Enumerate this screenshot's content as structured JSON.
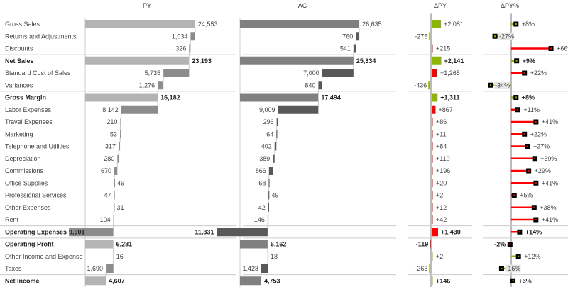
{
  "chart_data": {
    "type": "table",
    "columns": [
      "PY",
      "AC",
      "ΔPY",
      "ΔPY%"
    ],
    "colors": {
      "py_total": "#b4b4b4",
      "py_step": "#8c8c8c",
      "ac_total": "#808080",
      "ac_step": "#595959",
      "positive": "#8db600",
      "negative": "#ff0000",
      "marker": "#000000",
      "gridline": "#cccccc"
    },
    "rows": [
      {
        "label": "Gross Sales",
        "kind": "total",
        "bold": false,
        "py": 24553,
        "ac": 26635,
        "dpy": 2081,
        "dpy_pct": 8
      },
      {
        "label": "Returns and Adjustments",
        "kind": "cost",
        "bold": false,
        "py": 1034,
        "ac": 760,
        "dpy": -275,
        "dpy_pct": -27
      },
      {
        "label": "Discounts",
        "kind": "cost",
        "bold": false,
        "py": 326,
        "ac": 541,
        "dpy": 215,
        "dpy_pct": 66,
        "separator_after": true
      },
      {
        "label": "Net Sales",
        "kind": "total",
        "bold": true,
        "py": 23193,
        "ac": 25334,
        "dpy": 2141,
        "dpy_pct": 9
      },
      {
        "label": "Standard Cost of Sales",
        "kind": "cost",
        "bold": false,
        "py": 5735,
        "ac": 7000,
        "dpy": 1265,
        "dpy_pct": 22
      },
      {
        "label": "Variances",
        "kind": "cost",
        "bold": false,
        "py": 1276,
        "ac": 840,
        "dpy": -436,
        "dpy_pct": -34,
        "separator_after": true
      },
      {
        "label": "Gross Margin",
        "kind": "total",
        "bold": true,
        "py": 16182,
        "ac": 17494,
        "dpy": 1311,
        "dpy_pct": 8
      },
      {
        "label": "Labor Expenses",
        "kind": "cost",
        "bold": false,
        "py": 8142,
        "ac": 9009,
        "dpy": 867,
        "dpy_pct": 11
      },
      {
        "label": "Travel Expenses",
        "kind": "cost",
        "bold": false,
        "py": 210,
        "ac": 296,
        "dpy": 86,
        "dpy_pct": 41
      },
      {
        "label": "Marketing",
        "kind": "cost",
        "bold": false,
        "py": 53,
        "ac": 64,
        "dpy": 11,
        "dpy_pct": 22
      },
      {
        "label": "Telephone and Utilities",
        "kind": "cost",
        "bold": false,
        "py": 317,
        "ac": 402,
        "dpy": 84,
        "dpy_pct": 27
      },
      {
        "label": "Depreciation",
        "kind": "cost",
        "bold": false,
        "py": 280,
        "ac": 389,
        "dpy": 110,
        "dpy_pct": 39
      },
      {
        "label": "Commissions",
        "kind": "cost",
        "bold": false,
        "py": 670,
        "ac": 866,
        "dpy": 196,
        "dpy_pct": 29
      },
      {
        "label": "Office Supplies",
        "kind": "cost",
        "bold": false,
        "py": 49,
        "ac": 68,
        "dpy": 20,
        "dpy_pct": 41
      },
      {
        "label": "Professional Services",
        "kind": "cost",
        "bold": false,
        "py": 47,
        "ac": 49,
        "dpy": 2,
        "dpy_pct": 5
      },
      {
        "label": "Other Expenses",
        "kind": "cost",
        "bold": false,
        "py": 31,
        "ac": 42,
        "dpy": 12,
        "dpy_pct": 38
      },
      {
        "label": "Rent",
        "kind": "cost",
        "bold": false,
        "py": 104,
        "ac": 146,
        "dpy": 42,
        "dpy_pct": 41,
        "separator_after": true
      },
      {
        "label": "Operating Expenses",
        "kind": "cost_subtotal",
        "bold": true,
        "py": 9901,
        "ac": 11331,
        "dpy": 1430,
        "dpy_pct": 14,
        "separator_after": true
      },
      {
        "label": "Operating Profit",
        "kind": "total",
        "bold": true,
        "py": 6281,
        "ac": 6162,
        "dpy": -119,
        "dpy_pct": -2
      },
      {
        "label": "Other Income and Expense",
        "kind": "income",
        "bold": false,
        "py": 16,
        "ac": 18,
        "dpy": 2,
        "dpy_pct": 12
      },
      {
        "label": "Taxes",
        "kind": "cost",
        "bold": false,
        "py": 1690,
        "ac": 1428,
        "dpy": -263,
        "dpy_pct": -16,
        "separator_after": true
      },
      {
        "label": "Net Income",
        "kind": "total",
        "bold": true,
        "py": 4607,
        "ac": 4753,
        "dpy": 146,
        "dpy_pct": 3
      }
    ]
  }
}
